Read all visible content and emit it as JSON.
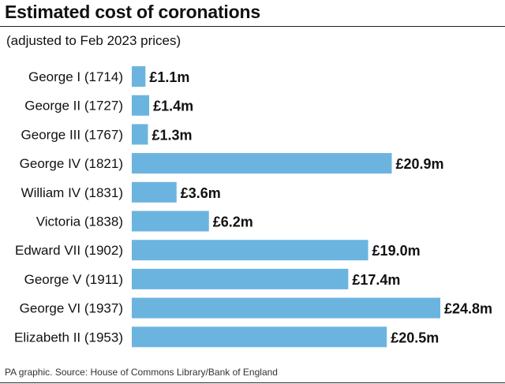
{
  "chart_data": {
    "type": "bar",
    "orientation": "horizontal",
    "title": "Estimated cost of coronations",
    "subtitle": "(adjusted to Feb 2023 prices)",
    "categories": [
      "George I (1714)",
      "George II (1727)",
      "George III (1767)",
      "George IV (1821)",
      "William IV (1831)",
      "Victoria (1838)",
      "Edward VII (1902)",
      "George V (1911)",
      "George VI (1937)",
      "Elizabeth II (1953)"
    ],
    "values": [
      1.1,
      1.4,
      1.3,
      20.9,
      3.6,
      6.2,
      19.0,
      17.4,
      24.8,
      20.5
    ],
    "value_labels": [
      "£1.1m",
      "£1.4m",
      "£1.3m",
      "£20.9m",
      "£3.6m",
      "£6.2m",
      "£19.0m",
      "£17.4m",
      "£24.8m",
      "£20.5m"
    ],
    "unit": "£m",
    "xlim": [
      0,
      24.8
    ],
    "grid": false,
    "bar_color": "#6cb4e0",
    "source": "PA graphic. Source: House of Commons Library/Bank of England"
  }
}
